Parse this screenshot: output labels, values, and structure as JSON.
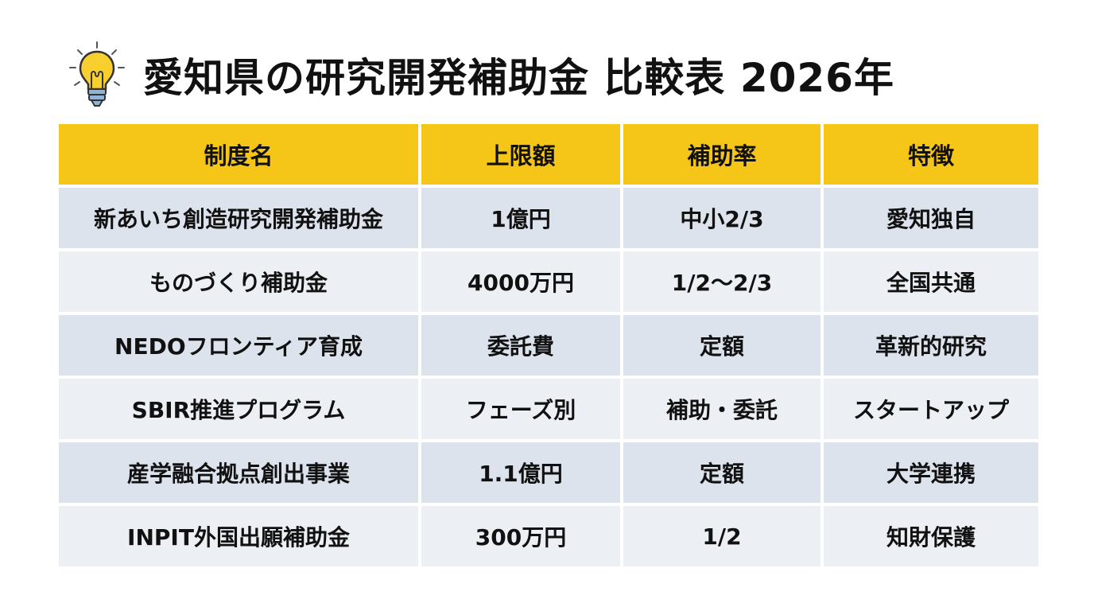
{
  "title": "愛知県の研究開発補助金 比較表 2026年",
  "icon": "lightbulb-icon",
  "colors": {
    "header_bg": "#f5c518",
    "row_a": "#dde3ec",
    "row_b": "#eceff3"
  },
  "table": {
    "headers": [
      "制度名",
      "上限額",
      "補助率",
      "特徴"
    ],
    "rows": [
      [
        "新あいち創造研究開発補助金",
        "1億円",
        "中小2/3",
        "愛知独自"
      ],
      [
        "ものづくり補助金",
        "4000万円",
        "1/2〜2/3",
        "全国共通"
      ],
      [
        "NEDOフロンティア育成",
        "委託費",
        "定額",
        "革新的研究"
      ],
      [
        "SBIR推進プログラム",
        "フェーズ別",
        "補助・委託",
        "スタートアップ"
      ],
      [
        "産学融合拠点創出事業",
        "1.1億円",
        "定額",
        "大学連携"
      ],
      [
        "INPIT外国出願補助金",
        "300万円",
        "1/2",
        "知財保護"
      ]
    ]
  }
}
